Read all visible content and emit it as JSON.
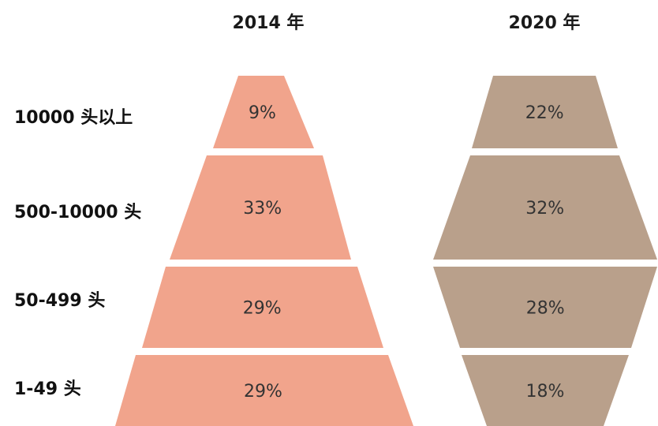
{
  "chart_data": {
    "type": "bar",
    "title": "",
    "categories": [
      "10000 头以上",
      "500-10000 头",
      "50-499 头",
      "1-49 头"
    ],
    "series": [
      {
        "name": "2014 年",
        "values": [
          9,
          33,
          29,
          29
        ],
        "labels": [
          "9%",
          "33%",
          "29%",
          "29%"
        ],
        "color": "#f1a48c"
      },
      {
        "name": "2020 年",
        "values": [
          22,
          32,
          28,
          18
        ],
        "labels": [
          "22%",
          "32%",
          "28%",
          "18%"
        ],
        "color": "#b9a08b"
      }
    ],
    "unit": "%"
  },
  "colors": {
    "label_text": "#333333",
    "background": "#ffffff"
  }
}
